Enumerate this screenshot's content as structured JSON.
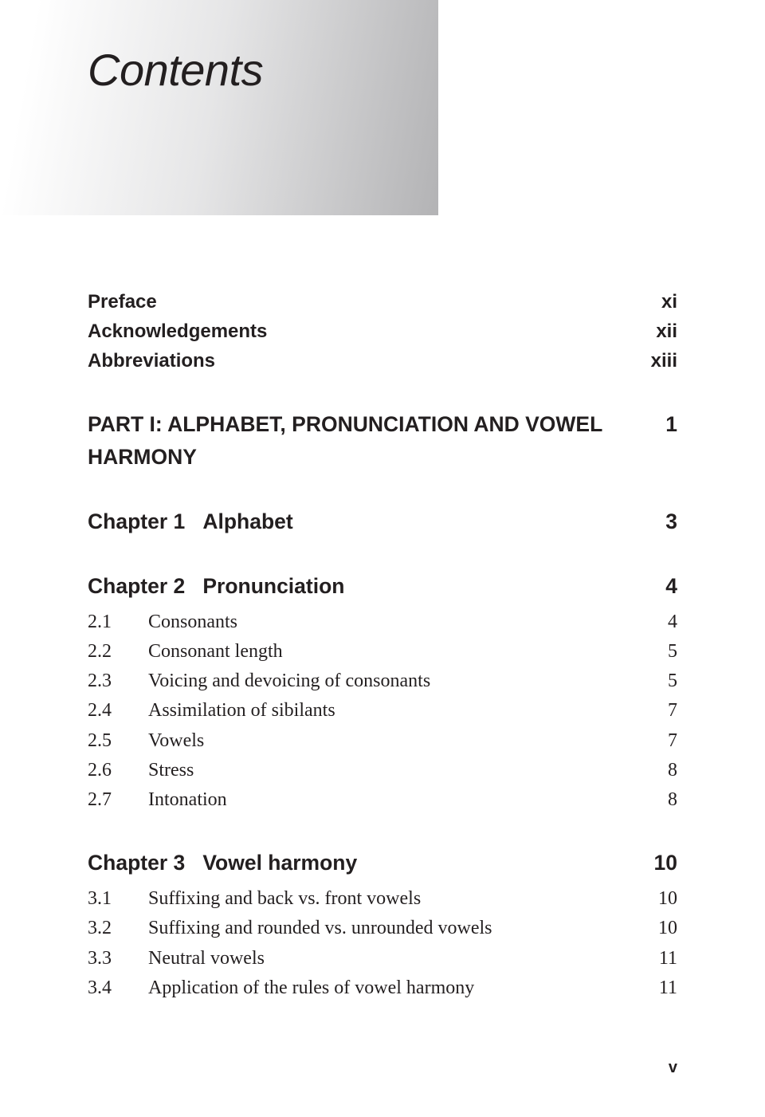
{
  "title": "Contents",
  "front_matter": [
    {
      "label": "Preface",
      "page": "xi"
    },
    {
      "label": "Acknowledgements",
      "page": "xii"
    },
    {
      "label": "Abbreviations",
      "page": "xiii"
    }
  ],
  "part": {
    "label": "PART I: ALPHABET, PRONUNCIATION AND VOWEL HARMONY",
    "page": "1"
  },
  "chapters": [
    {
      "prefix": "Chapter 1",
      "title": "Alphabet",
      "page": "3",
      "sections": []
    },
    {
      "prefix": "Chapter 2",
      "title": "Pronunciation",
      "page": "4",
      "sections": [
        {
          "num": "2.1",
          "label": "Consonants",
          "page": "4"
        },
        {
          "num": "2.2",
          "label": "Consonant length",
          "page": "5"
        },
        {
          "num": "2.3",
          "label": "Voicing and devoicing of consonants",
          "page": "5"
        },
        {
          "num": "2.4",
          "label": "Assimilation of sibilants",
          "page": "7"
        },
        {
          "num": "2.5",
          "label": "Vowels",
          "page": "7"
        },
        {
          "num": "2.6",
          "label": "Stress",
          "page": "8"
        },
        {
          "num": "2.7",
          "label": "Intonation",
          "page": "8"
        }
      ]
    },
    {
      "prefix": "Chapter 3",
      "title": "Vowel harmony",
      "page": "10",
      "sections": [
        {
          "num": "3.1",
          "label": "Suffixing and back vs. front vowels",
          "page": "10"
        },
        {
          "num": "3.2",
          "label": "Suffixing and rounded vs. unrounded vowels",
          "page": "10"
        },
        {
          "num": "3.3",
          "label": "Neutral vowels",
          "page": "11"
        },
        {
          "num": "3.4",
          "label": "Application of the rules of vowel harmony",
          "page": "11"
        }
      ]
    }
  ],
  "footer_page": "v",
  "colors": {
    "text": "#231f20",
    "background": "#ffffff",
    "gradient_start": "#ffffff",
    "gradient_end": "#b3b3b5"
  },
  "typography": {
    "title_font": "Gill Sans",
    "title_size_pt": 42,
    "title_style": "italic",
    "bold_font": "Gill Sans",
    "bold_size_pt": 20,
    "body_font": "Palatino",
    "body_size_pt": 18
  }
}
